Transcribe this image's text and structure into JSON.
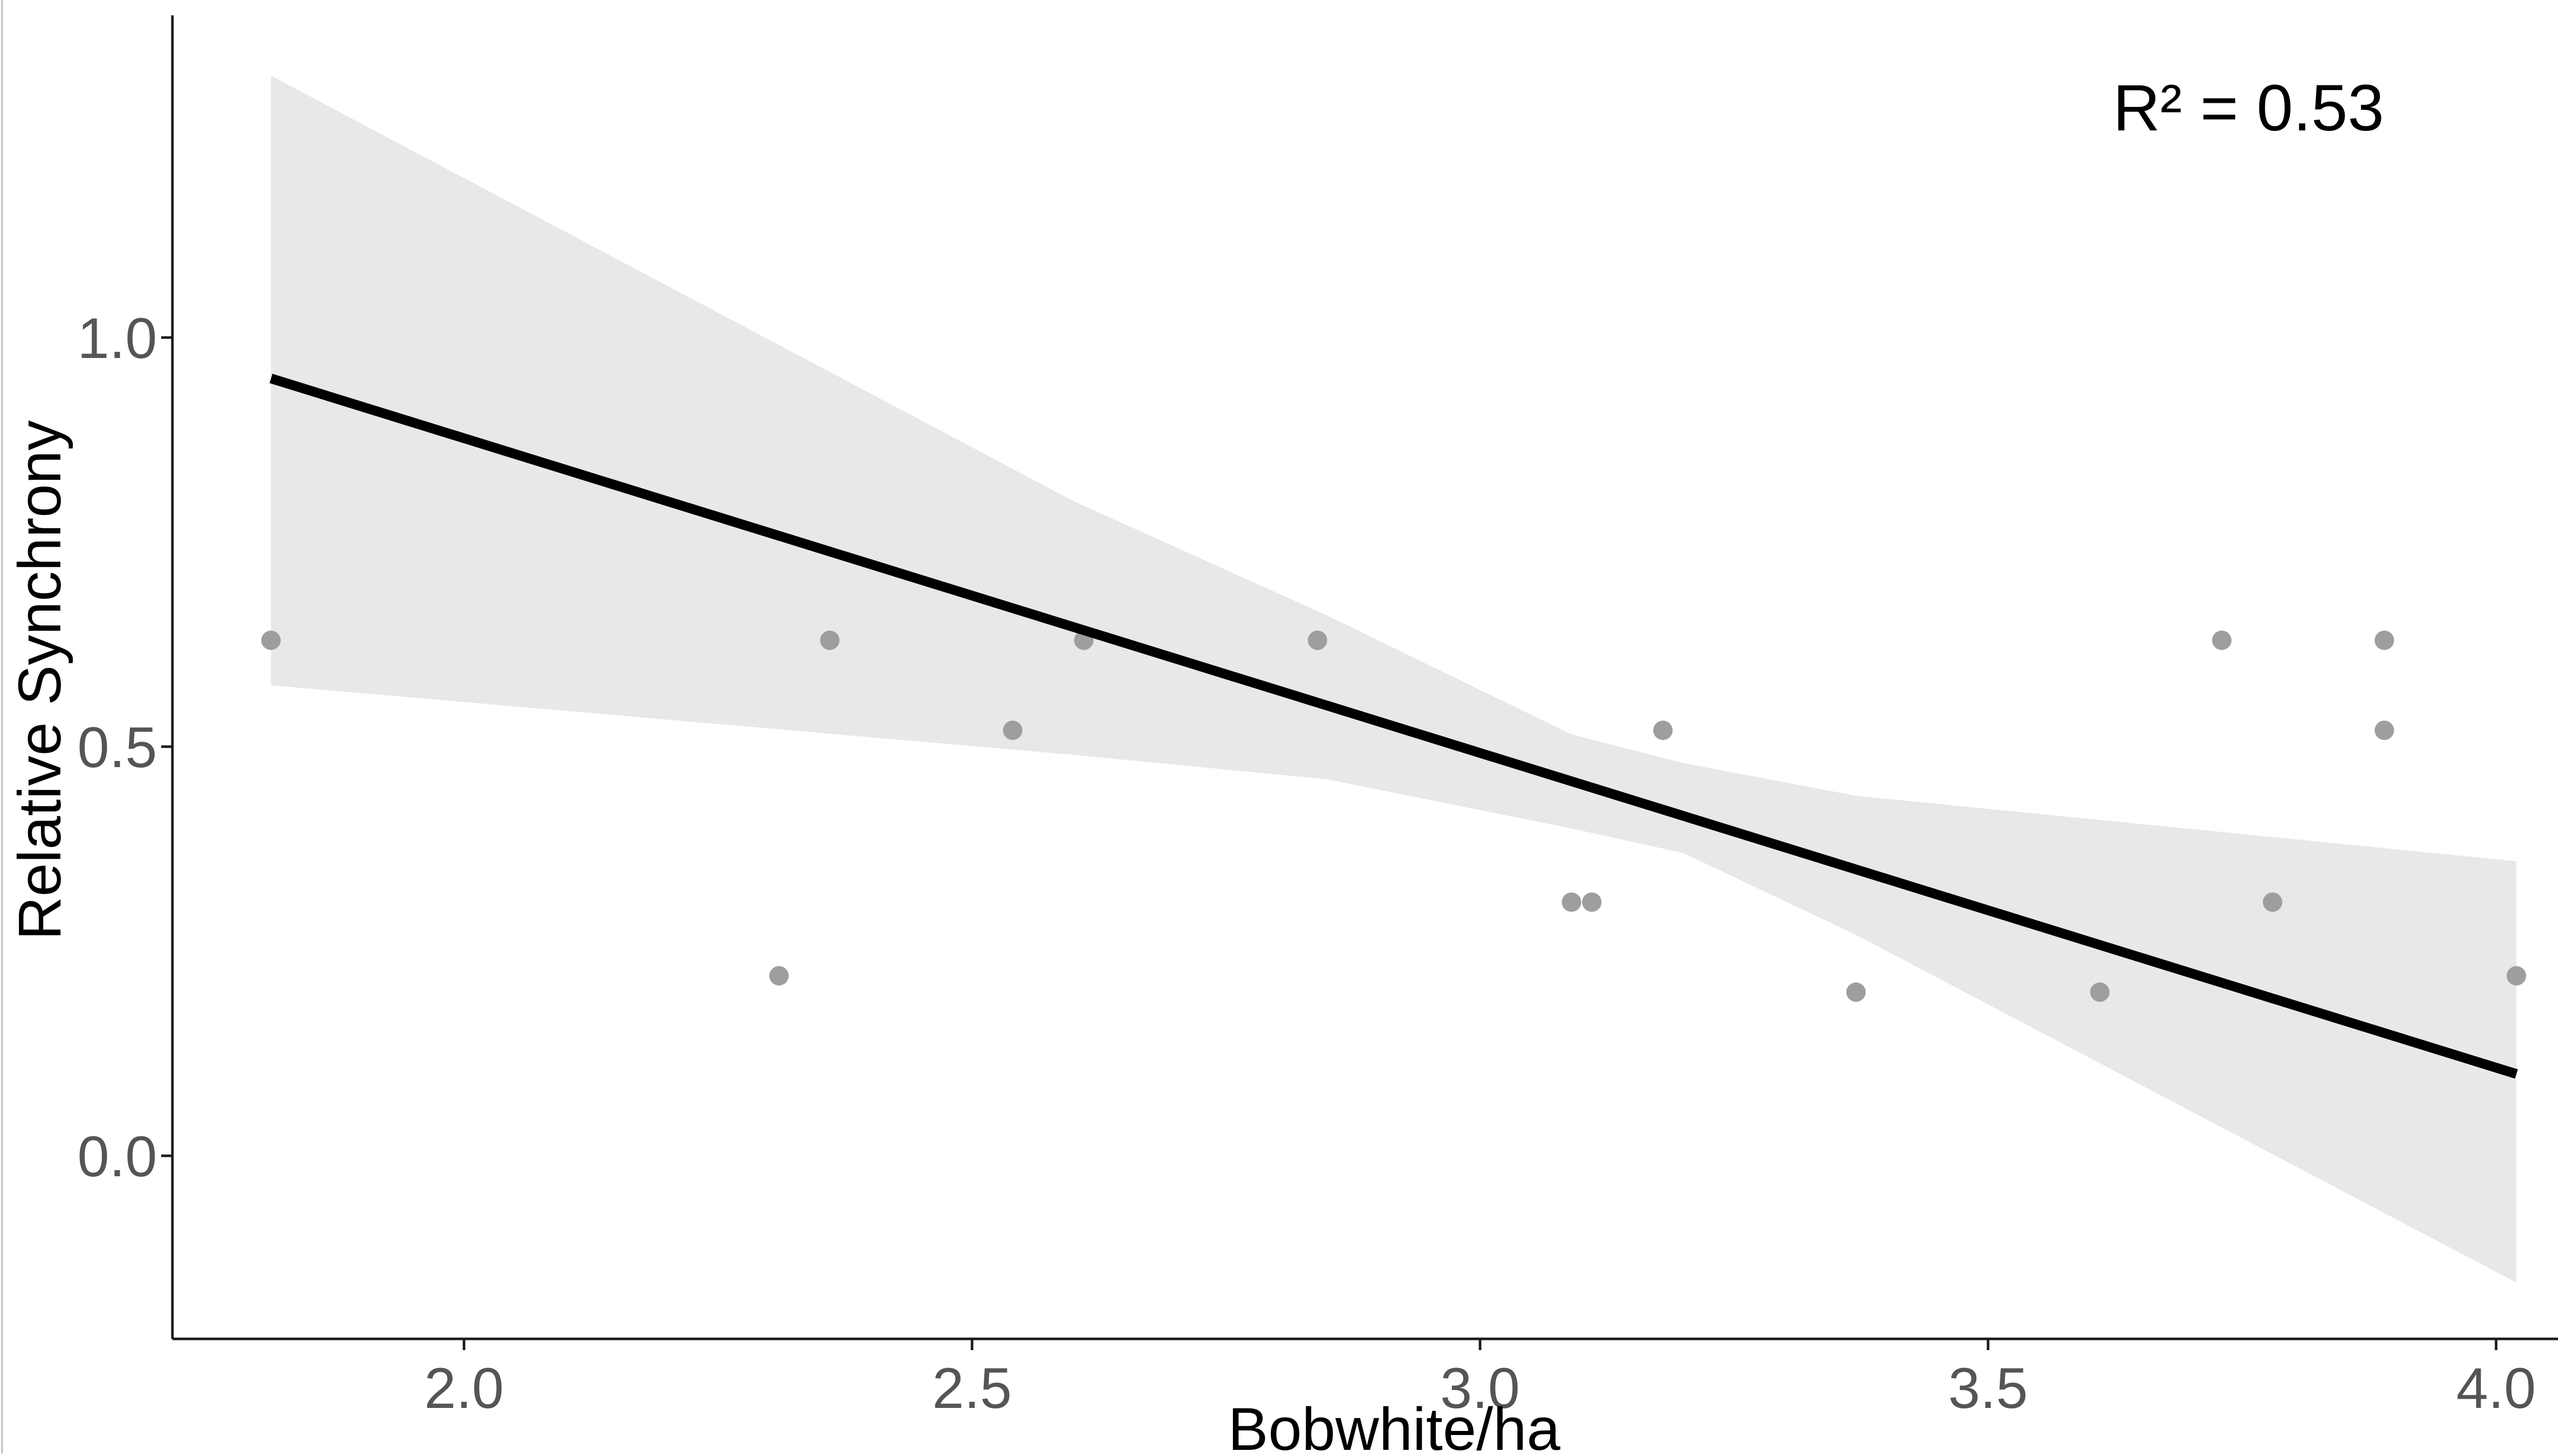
{
  "chart_data": {
    "type": "scatter",
    "title": "",
    "xlabel": "Bobwhite/ha",
    "ylabel": "Relative Synchrony",
    "xlim": [
      1.7,
      4.12
    ],
    "ylim": [
      -0.22,
      1.4
    ],
    "x_ticks": [
      {
        "value": 2.0,
        "label": "2.0"
      },
      {
        "value": 2.5,
        "label": "2.5"
      },
      {
        "value": 3.0,
        "label": "3.0"
      },
      {
        "value": 3.5,
        "label": "3.5"
      },
      {
        "value": 4.0,
        "label": "4.0"
      }
    ],
    "y_ticks": [
      {
        "value": 0.0,
        "label": "0.0"
      },
      {
        "value": 0.5,
        "label": "0.5"
      },
      {
        "value": 1.0,
        "label": "1.0"
      }
    ],
    "grid": false,
    "annotation": "R² = 0.53",
    "points": [
      {
        "x": 1.81,
        "y": 0.63
      },
      {
        "x": 2.31,
        "y": 0.22
      },
      {
        "x": 2.36,
        "y": 0.63
      },
      {
        "x": 2.54,
        "y": 0.52
      },
      {
        "x": 2.61,
        "y": 0.63
      },
      {
        "x": 2.84,
        "y": 0.63
      },
      {
        "x": 3.09,
        "y": 0.31
      },
      {
        "x": 3.11,
        "y": 0.31
      },
      {
        "x": 3.18,
        "y": 0.52
      },
      {
        "x": 3.37,
        "y": 0.2
      },
      {
        "x": 3.61,
        "y": 0.2
      },
      {
        "x": 3.73,
        "y": 0.63
      },
      {
        "x": 3.78,
        "y": 0.31
      },
      {
        "x": 3.89,
        "y": 0.63
      },
      {
        "x": 3.89,
        "y": 0.52
      },
      {
        "x": 4.02,
        "y": 0.22
      }
    ],
    "fit_line": [
      {
        "x": 1.81,
        "y": 0.95
      },
      {
        "x": 4.02,
        "y": 0.1
      }
    ],
    "confidence_band": [
      {
        "x": 1.81,
        "lower": 0.575,
        "upper": 1.32
      },
      {
        "x": 2.6,
        "lower": 0.49,
        "upper": 0.8
      },
      {
        "x": 2.85,
        "lower": 0.46,
        "upper": 0.66
      },
      {
        "x": 3.09,
        "lower": 0.4,
        "upper": 0.515
      },
      {
        "x": 3.2,
        "lower": 0.37,
        "upper": 0.48
      },
      {
        "x": 3.37,
        "lower": 0.27,
        "upper": 0.44
      },
      {
        "x": 4.02,
        "lower": -0.155,
        "upper": 0.36
      }
    ],
    "colors": {
      "points": "#9e9e9e",
      "line": "#000000",
      "band": "#e8e8e8",
      "axis": "#1a1a1a",
      "tick_labels": "#555555"
    }
  }
}
